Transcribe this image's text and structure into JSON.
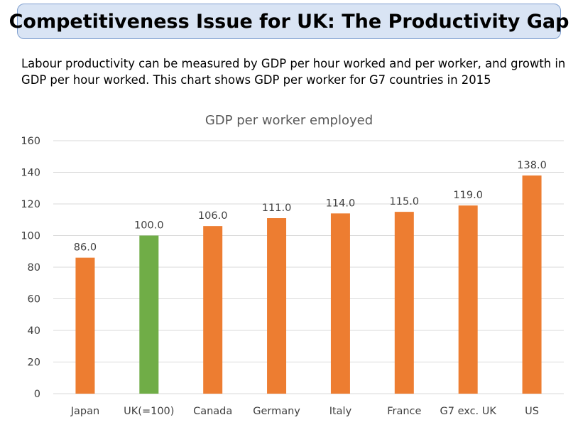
{
  "slide": {
    "title": "Competitiveness Issue for UK: The Productivity Gap",
    "intro": "Labour productivity can be measured by GDP per hour worked and per worker, and growth in GDP per hour worked. This chart shows GDP per worker for G7 countries in 2015"
  },
  "chart_data": {
    "type": "bar",
    "title": "GDP per worker employed",
    "xlabel": "",
    "ylabel": "",
    "categories": [
      "Japan",
      "UK(=100)",
      "Canada",
      "Germany",
      "Italy",
      "France",
      "G7 exc. UK",
      "US"
    ],
    "values": [
      86.0,
      100.0,
      106.0,
      111.0,
      114.0,
      115.0,
      119.0,
      138.0
    ],
    "data_labels": [
      "86.0",
      "100.0",
      "106.0",
      "111.0",
      "114.0",
      "115.0",
      "119.0",
      "138.0"
    ],
    "ylim": [
      0,
      160
    ],
    "yticks": [
      0,
      20,
      40,
      60,
      80,
      100,
      120,
      140,
      160
    ],
    "grid": true,
    "legend": "none",
    "colors": {
      "default": "#ed7d31",
      "highlight": "#70ad47",
      "highlight_category": "UK(=100)",
      "grid": "#d9d9d9",
      "text": "#404040",
      "title_text": "#595959"
    }
  }
}
